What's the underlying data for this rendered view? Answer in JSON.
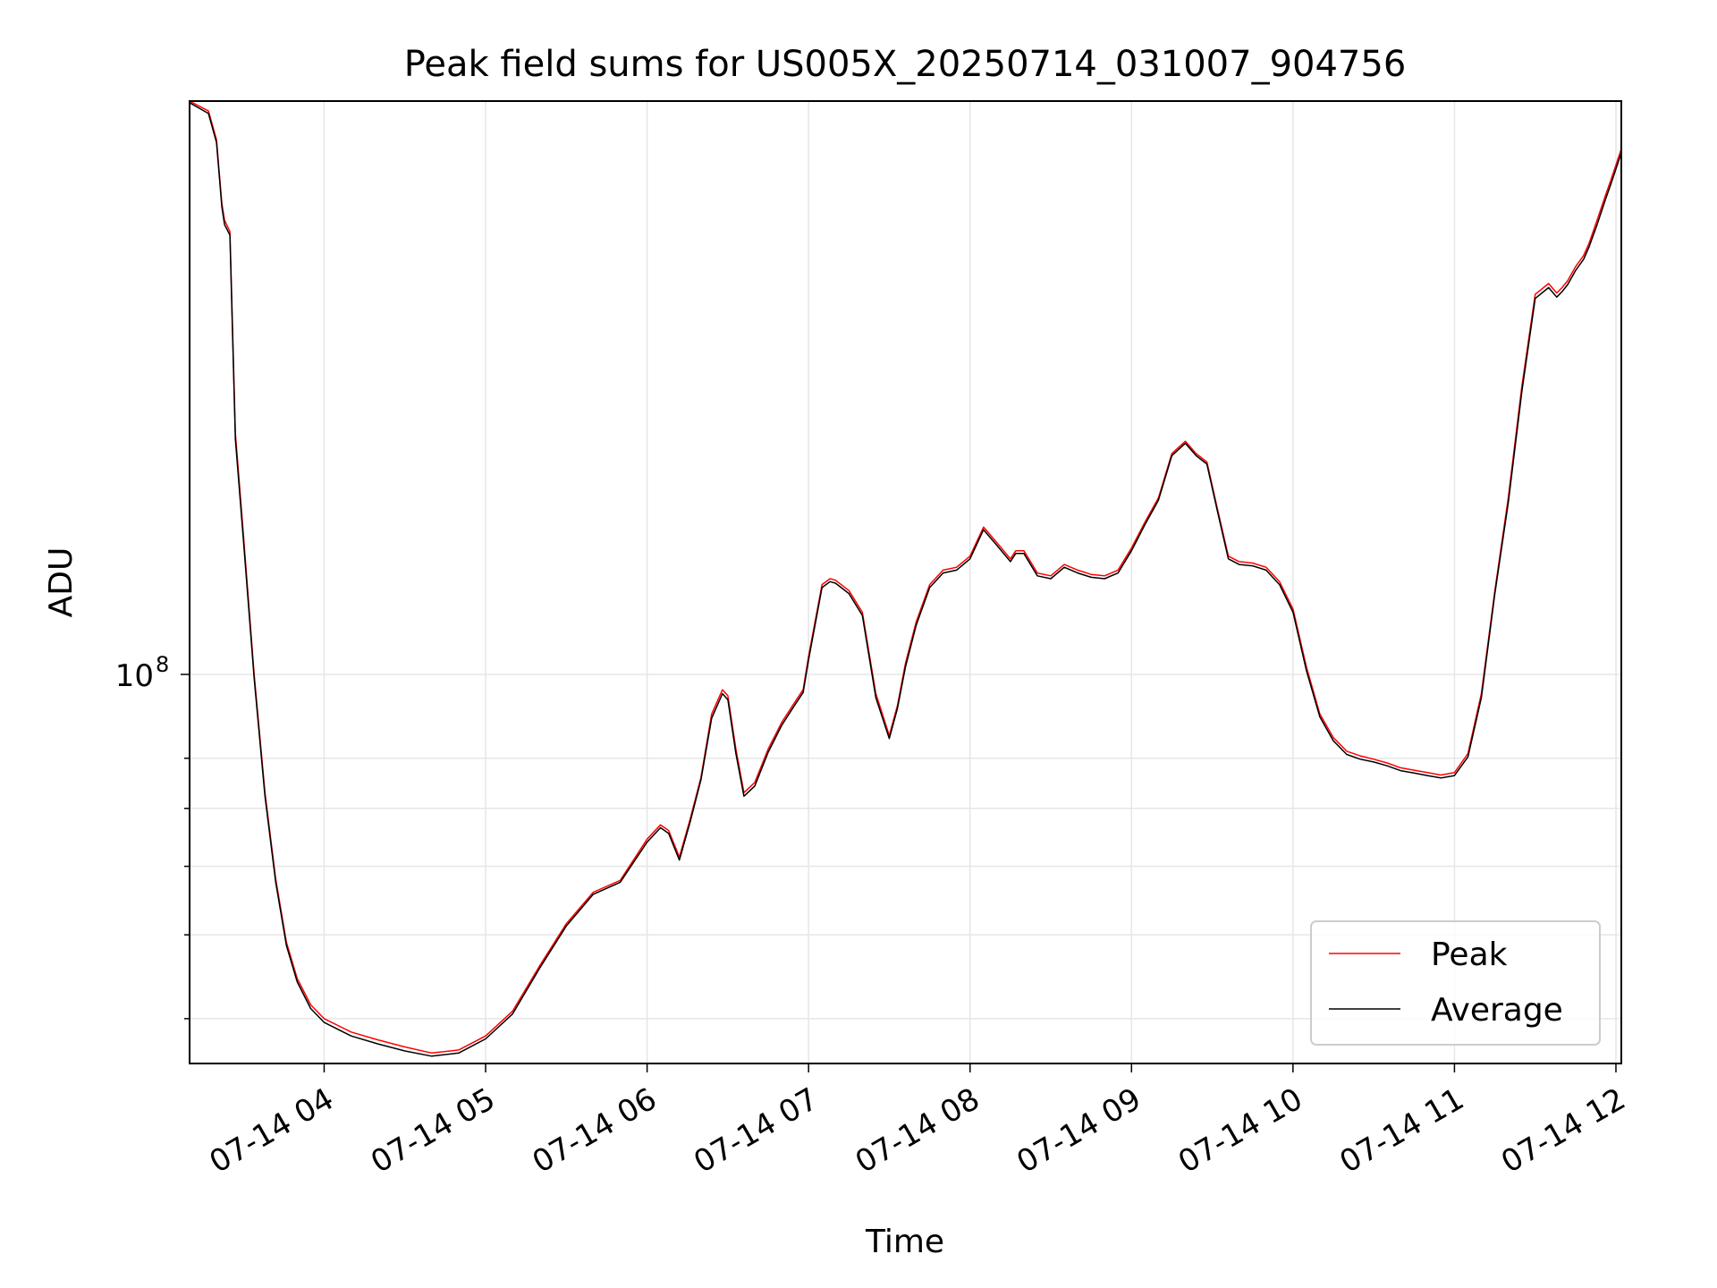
{
  "chart_data": {
    "type": "line",
    "title": "Peak field sums for US005X_20250714_031007_904756",
    "xlabel": "Time",
    "ylabel": "ADU",
    "yscale": "log",
    "grid": true,
    "legend_position": "lower-right",
    "x_ticks": [
      "07-14 04",
      "07-14 05",
      "07-14 06",
      "07-14 07",
      "07-14 08",
      "07-14 09",
      "07-14 10",
      "07-14 11",
      "07-14 12"
    ],
    "y_major_tick_labels": [
      {
        "value": 100000000,
        "label": "10",
        "superscript": "8"
      }
    ],
    "y_minor_ticks": [
      40000000,
      50000000,
      60000000,
      70000000,
      80000000
    ],
    "xlim": [
      "07-14 03:10",
      "07-14 12:02"
    ],
    "ylim": [
      35500000,
      460000000
    ],
    "series": [
      {
        "name": "Peak",
        "color": "#ff0000",
        "x": [
          "07-14 03:10",
          "07-14 03:17",
          "07-14 03:20",
          "07-14 03:22",
          "07-14 03:23",
          "07-14 03:25",
          "07-14 03:27",
          "07-14 03:30",
          "07-14 03:34",
          "07-14 03:38",
          "07-14 03:42",
          "07-14 03:46",
          "07-14 03:50",
          "07-14 03:55",
          "07-14 04:00",
          "07-14 04:10",
          "07-14 04:20",
          "07-14 04:30",
          "07-14 04:40",
          "07-14 04:50",
          "07-14 05:00",
          "07-14 05:10",
          "07-14 05:20",
          "07-14 05:30",
          "07-14 05:40",
          "07-14 05:50",
          "07-14 06:00",
          "07-14 06:05",
          "07-14 06:08",
          "07-14 06:12",
          "07-14 06:16",
          "07-14 06:20",
          "07-14 06:24",
          "07-14 06:28",
          "07-14 06:30",
          "07-14 06:33",
          "07-14 06:36",
          "07-14 06:40",
          "07-14 06:45",
          "07-14 06:50",
          "07-14 06:55",
          "07-14 06:58",
          "07-14 07:00",
          "07-14 07:05",
          "07-14 07:08",
          "07-14 07:10",
          "07-14 07:15",
          "07-14 07:20",
          "07-14 07:25",
          "07-14 07:30",
          "07-14 07:33",
          "07-14 07:36",
          "07-14 07:40",
          "07-14 07:45",
          "07-14 07:50",
          "07-14 07:55",
          "07-14 08:00",
          "07-14 08:05",
          "07-14 08:10",
          "07-14 08:15",
          "07-14 08:17",
          "07-14 08:20",
          "07-14 08:25",
          "07-14 08:30",
          "07-14 08:35",
          "07-14 08:40",
          "07-14 08:45",
          "07-14 08:50",
          "07-14 08:55",
          "07-14 09:00",
          "07-14 09:05",
          "07-14 09:10",
          "07-14 09:15",
          "07-14 09:20",
          "07-14 09:24",
          "07-14 09:28",
          "07-14 09:32",
          "07-14 09:36",
          "07-14 09:40",
          "07-14 09:45",
          "07-14 09:50",
          "07-14 09:55",
          "07-14 10:00",
          "07-14 10:05",
          "07-14 10:10",
          "07-14 10:15",
          "07-14 10:20",
          "07-14 10:25",
          "07-14 10:30",
          "07-14 10:35",
          "07-14 10:40",
          "07-14 10:45",
          "07-14 10:50",
          "07-14 10:55",
          "07-14 11:00",
          "07-14 11:05",
          "07-14 11:10",
          "07-14 11:15",
          "07-14 11:20",
          "07-14 11:25",
          "07-14 11:30",
          "07-14 11:35",
          "07-14 11:38",
          "07-14 11:40",
          "07-14 11:42",
          "07-14 11:45",
          "07-14 11:48",
          "07-14 11:50",
          "07-14 11:53",
          "07-14 11:56",
          "07-14 11:58",
          "07-14 12:00",
          "07-14 12:02"
        ],
        "y": [
          460000000,
          448000000,
          415000000,
          350000000,
          335000000,
          325000000,
          190000000,
          145000000,
          100000000,
          73000000,
          58000000,
          49000000,
          44500000,
          41500000,
          40000000,
          38600000,
          37800000,
          37100000,
          36500000,
          36800000,
          38200000,
          40800000,
          46000000,
          51500000,
          56000000,
          57800000,
          64500000,
          67000000,
          66000000,
          61500000,
          68000000,
          76000000,
          90000000,
          96000000,
          94500000,
          82000000,
          73000000,
          75000000,
          82000000,
          88000000,
          93000000,
          96000000,
          105000000,
          127000000,
          129000000,
          128500000,
          125000000,
          118000000,
          95000000,
          85000000,
          92000000,
          103000000,
          115000000,
          127000000,
          132000000,
          133000000,
          137000000,
          148000000,
          142000000,
          136000000,
          139000000,
          139000000,
          131000000,
          130000000,
          134000000,
          132000000,
          130500000,
          130000000,
          132000000,
          140000000,
          150000000,
          160000000,
          180000000,
          186000000,
          180000000,
          176000000,
          155000000,
          137000000,
          135000000,
          134500000,
          133000000,
          128000000,
          119000000,
          102000000,
          90000000,
          84500000,
          81500000,
          80500000,
          79800000,
          79000000,
          78000000,
          77500000,
          77000000,
          76500000,
          77000000,
          81000000,
          95000000,
          125000000,
          160000000,
          215000000,
          275000000,
          283000000,
          276000000,
          280000000,
          285000000,
          296000000,
          305000000,
          315000000,
          335000000,
          357000000,
          372000000,
          388000000,
          405000000
        ]
      },
      {
        "name": "Average",
        "color": "#000000",
        "x": [
          "07-14 03:10",
          "07-14 03:17",
          "07-14 03:20",
          "07-14 03:22",
          "07-14 03:23",
          "07-14 03:25",
          "07-14 03:27",
          "07-14 03:30",
          "07-14 03:34",
          "07-14 03:38",
          "07-14 03:42",
          "07-14 03:46",
          "07-14 03:50",
          "07-14 03:55",
          "07-14 04:00",
          "07-14 04:10",
          "07-14 04:20",
          "07-14 04:30",
          "07-14 04:40",
          "07-14 04:50",
          "07-14 05:00",
          "07-14 05:10",
          "07-14 05:20",
          "07-14 05:30",
          "07-14 05:40",
          "07-14 05:50",
          "07-14 06:00",
          "07-14 06:05",
          "07-14 06:08",
          "07-14 06:12",
          "07-14 06:16",
          "07-14 06:20",
          "07-14 06:24",
          "07-14 06:28",
          "07-14 06:30",
          "07-14 06:33",
          "07-14 06:36",
          "07-14 06:40",
          "07-14 06:45",
          "07-14 06:50",
          "07-14 06:55",
          "07-14 06:58",
          "07-14 07:00",
          "07-14 07:05",
          "07-14 07:08",
          "07-14 07:10",
          "07-14 07:15",
          "07-14 07:20",
          "07-14 07:25",
          "07-14 07:30",
          "07-14 07:33",
          "07-14 07:36",
          "07-14 07:40",
          "07-14 07:45",
          "07-14 07:50",
          "07-14 07:55",
          "07-14 08:00",
          "07-14 08:05",
          "07-14 08:10",
          "07-14 08:15",
          "07-14 08:17",
          "07-14 08:20",
          "07-14 08:25",
          "07-14 08:30",
          "07-14 08:35",
          "07-14 08:40",
          "07-14 08:45",
          "07-14 08:50",
          "07-14 08:55",
          "07-14 09:00",
          "07-14 09:05",
          "07-14 09:10",
          "07-14 09:15",
          "07-14 09:20",
          "07-14 09:24",
          "07-14 09:28",
          "07-14 09:32",
          "07-14 09:36",
          "07-14 09:40",
          "07-14 09:45",
          "07-14 09:50",
          "07-14 09:55",
          "07-14 10:00",
          "07-14 10:05",
          "07-14 10:10",
          "07-14 10:15",
          "07-14 10:20",
          "07-14 10:25",
          "07-14 10:30",
          "07-14 10:35",
          "07-14 10:40",
          "07-14 10:45",
          "07-14 10:50",
          "07-14 10:55",
          "07-14 11:00",
          "07-14 11:05",
          "07-14 11:10",
          "07-14 11:15",
          "07-14 11:20",
          "07-14 11:25",
          "07-14 11:30",
          "07-14 11:35",
          "07-14 11:38",
          "07-14 11:40",
          "07-14 11:42",
          "07-14 11:45",
          "07-14 11:48",
          "07-14 11:50",
          "07-14 11:53",
          "07-14 11:56",
          "07-14 11:58",
          "07-14 12:00",
          "07-14 12:02"
        ],
        "y": [
          458000000,
          445000000,
          412000000,
          347000000,
          331000000,
          322000000,
          187000000,
          143000000,
          99000000,
          72300000,
          57500000,
          48600000,
          44100000,
          41100000,
          39600000,
          38200000,
          37400000,
          36700000,
          36200000,
          36500000,
          37900000,
          40500000,
          45700000,
          51200000,
          55700000,
          57500000,
          64000000,
          66500000,
          65500000,
          61000000,
          67500000,
          75500000,
          89000000,
          95000000,
          93500000,
          81000000,
          72300000,
          74300000,
          81300000,
          87300000,
          92300000,
          95300000,
          104000000,
          126000000,
          128000000,
          127500000,
          124000000,
          117000000,
          94000000,
          84300000,
          91300000,
          102000000,
          114000000,
          126000000,
          131000000,
          132000000,
          136000000,
          147000000,
          141000000,
          135000000,
          138000000,
          138000000,
          130000000,
          129000000,
          133000000,
          131000000,
          129500000,
          129000000,
          131000000,
          139000000,
          149000000,
          159000000,
          179000000,
          185000000,
          179000000,
          175000000,
          154000000,
          136000000,
          134000000,
          133500000,
          132000000,
          127000000,
          118000000,
          101000000,
          89300000,
          83800000,
          80800000,
          79800000,
          79200000,
          78400000,
          77400000,
          76900000,
          76400000,
          75900000,
          76400000,
          80300000,
          94000000,
          124000000,
          158000000,
          212000000,
          272000000,
          280000000,
          273000000,
          277000000,
          282000000,
          293000000,
          302000000,
          312000000,
          331000000,
          353000000,
          368000000,
          384000000,
          401000000
        ]
      }
    ]
  }
}
